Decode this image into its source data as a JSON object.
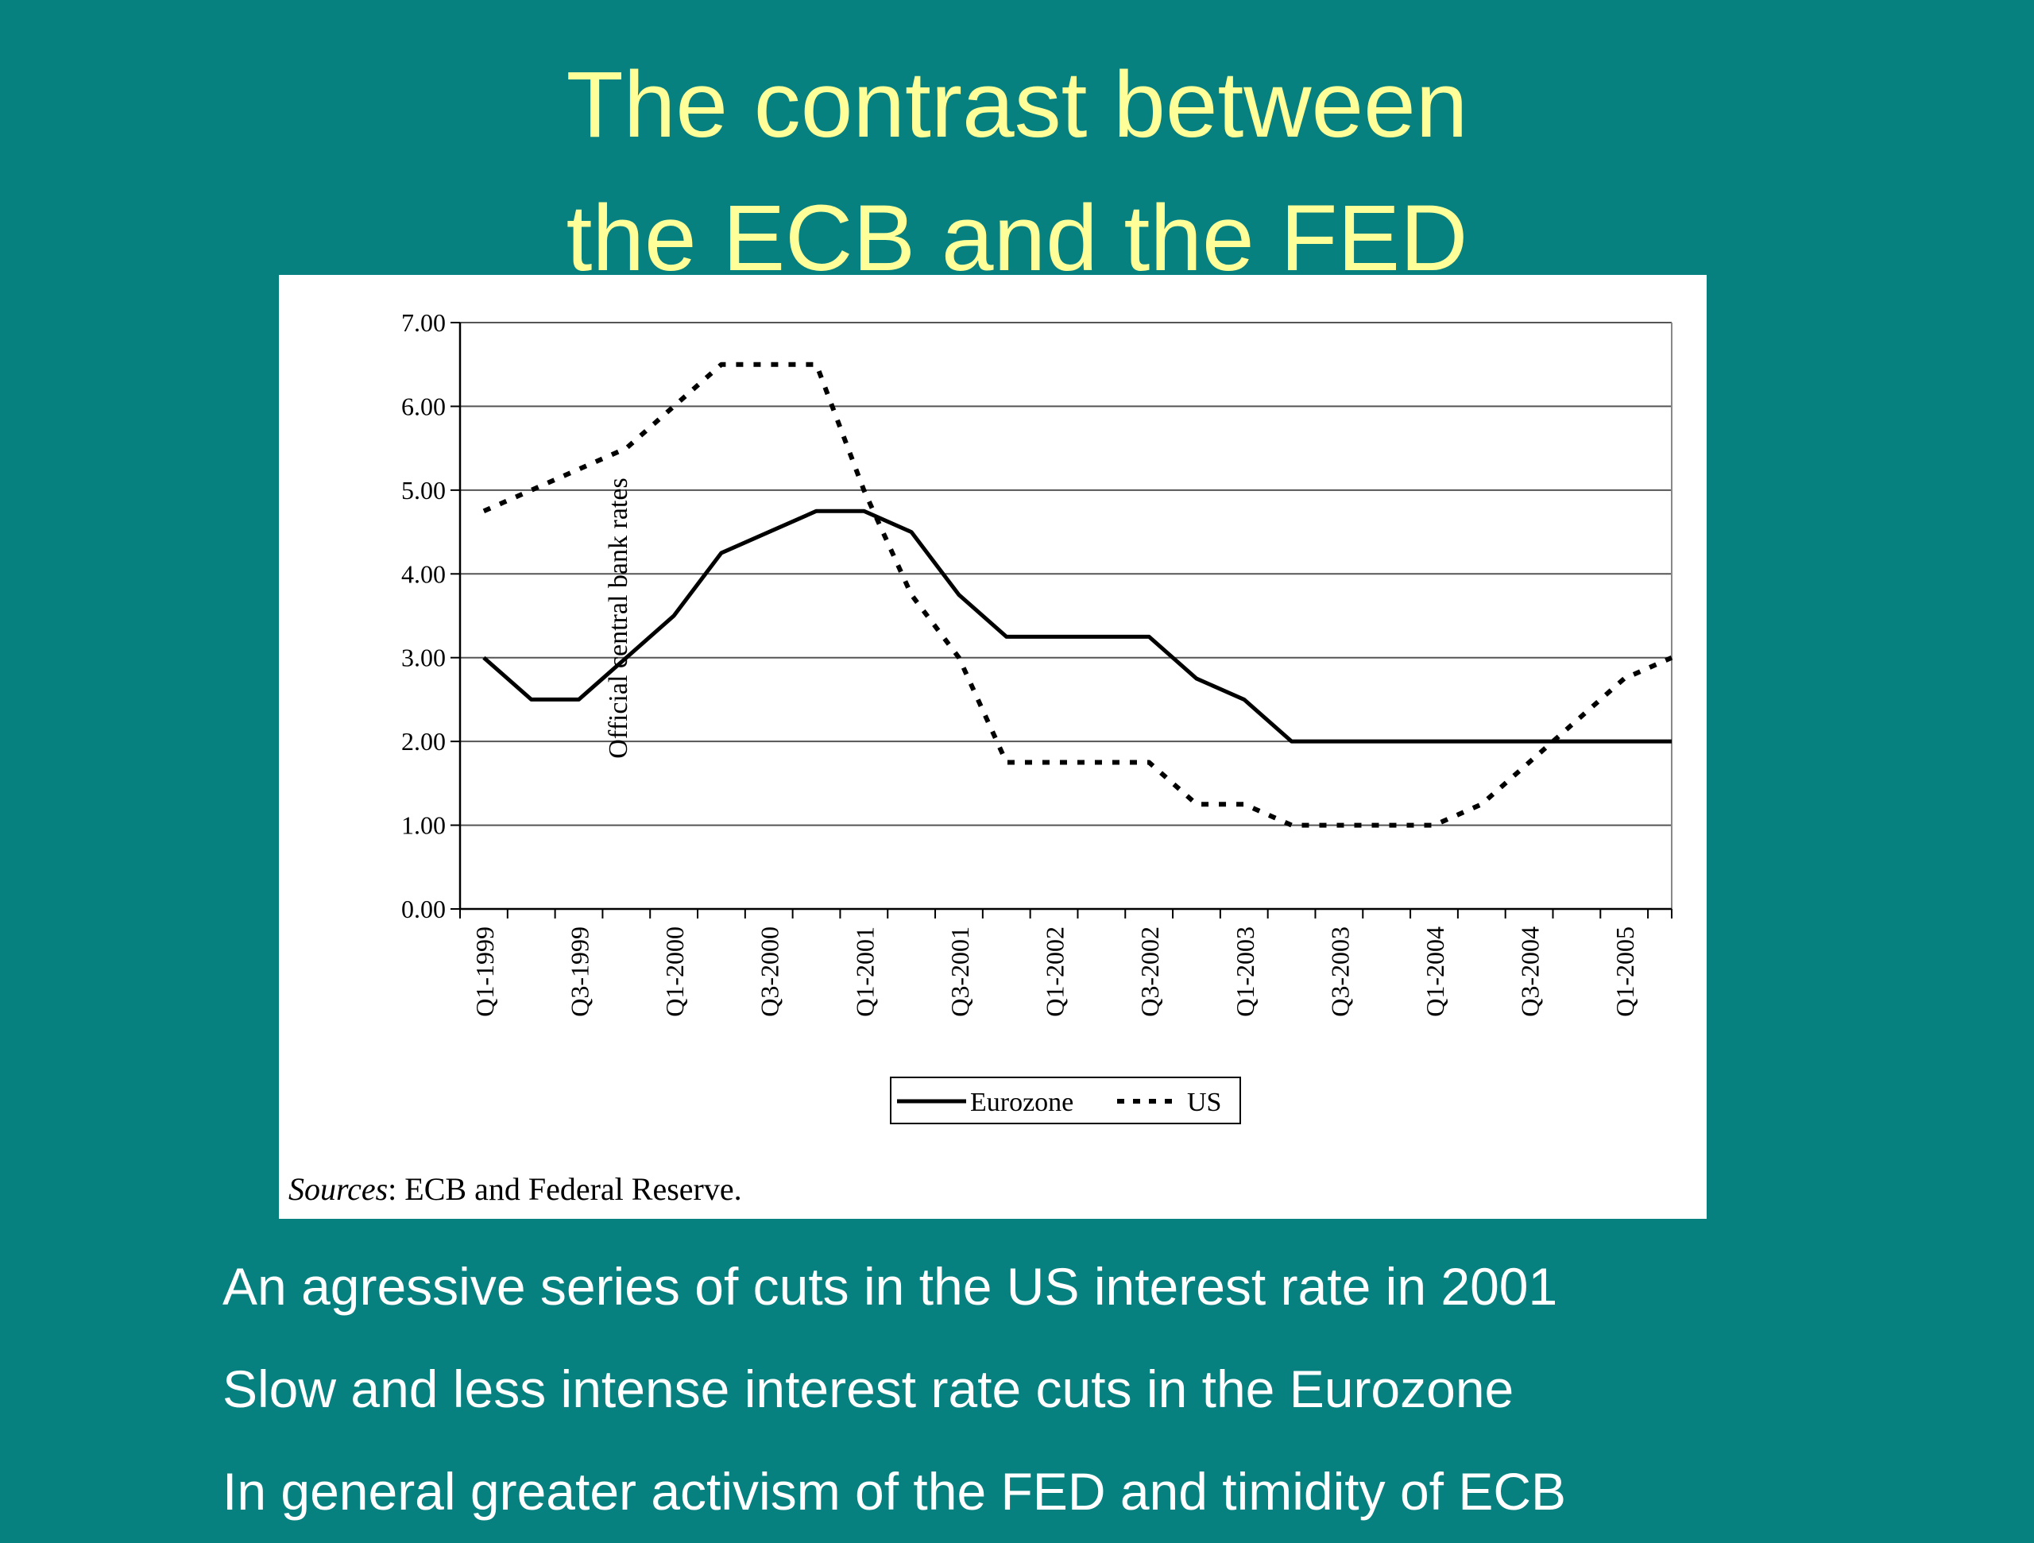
{
  "slide": {
    "title_line1": "The contrast between",
    "title_line2": "the ECB and the FED",
    "bullets": [
      "An agressive series of cuts in the US interest rate in 2001",
      "Slow and less intense interest rate cuts in the Eurozone",
      "In general greater activism of the FED and timidity of ECB"
    ],
    "background_color": "#078080",
    "title_color": "#ffff99"
  },
  "chart_data": {
    "type": "line",
    "title": "",
    "xlabel": "",
    "ylabel": "Official central bank rates",
    "ylim": [
      0,
      7
    ],
    "yticks": [
      "0.00",
      "1.00",
      "2.00",
      "3.00",
      "4.00",
      "5.00",
      "6.00",
      "7.00"
    ],
    "x": [
      "Q1-1999",
      "Q2-1999",
      "Q3-1999",
      "Q4-1999",
      "Q1-2000",
      "Q2-2000",
      "Q3-2000",
      "Q4-2000",
      "Q1-2001",
      "Q2-2001",
      "Q3-2001",
      "Q4-2001",
      "Q1-2002",
      "Q2-2002",
      "Q3-2002",
      "Q4-2002",
      "Q1-2003",
      "Q2-2003",
      "Q3-2003",
      "Q4-2003",
      "Q1-2004",
      "Q2-2004",
      "Q3-2004",
      "Q4-2004",
      "Q1-2005",
      "Q2-2005"
    ],
    "x_tick_labels": [
      "Q1-1999",
      "Q3-1999",
      "Q1-2000",
      "Q3-2000",
      "Q1-2001",
      "Q3-2001",
      "Q1-2002",
      "Q3-2002",
      "Q1-2003",
      "Q3-2003",
      "Q1-2004",
      "Q3-2004",
      "Q1-2005"
    ],
    "series": [
      {
        "name": "Eurozone",
        "style": "solid",
        "values": [
          3.0,
          2.5,
          2.5,
          3.0,
          3.5,
          4.25,
          4.5,
          4.75,
          4.75,
          4.5,
          3.75,
          3.25,
          3.25,
          3.25,
          3.25,
          2.75,
          2.5,
          2.0,
          2.0,
          2.0,
          2.0,
          2.0,
          2.0,
          2.0,
          2.0,
          2.0
        ]
      },
      {
        "name": "US",
        "style": "dotted",
        "values": [
          4.75,
          5.0,
          5.25,
          5.5,
          6.0,
          6.5,
          6.5,
          6.5,
          5.0,
          3.75,
          3.0,
          1.75,
          1.75,
          1.75,
          1.75,
          1.25,
          1.25,
          1.0,
          1.0,
          1.0,
          1.0,
          1.25,
          1.75,
          2.25,
          2.75,
          3.0
        ]
      }
    ],
    "grid": true,
    "legend_position": "bottom",
    "source_italic": "Sources",
    "source_rest": ": ECB and Federal Reserve."
  }
}
